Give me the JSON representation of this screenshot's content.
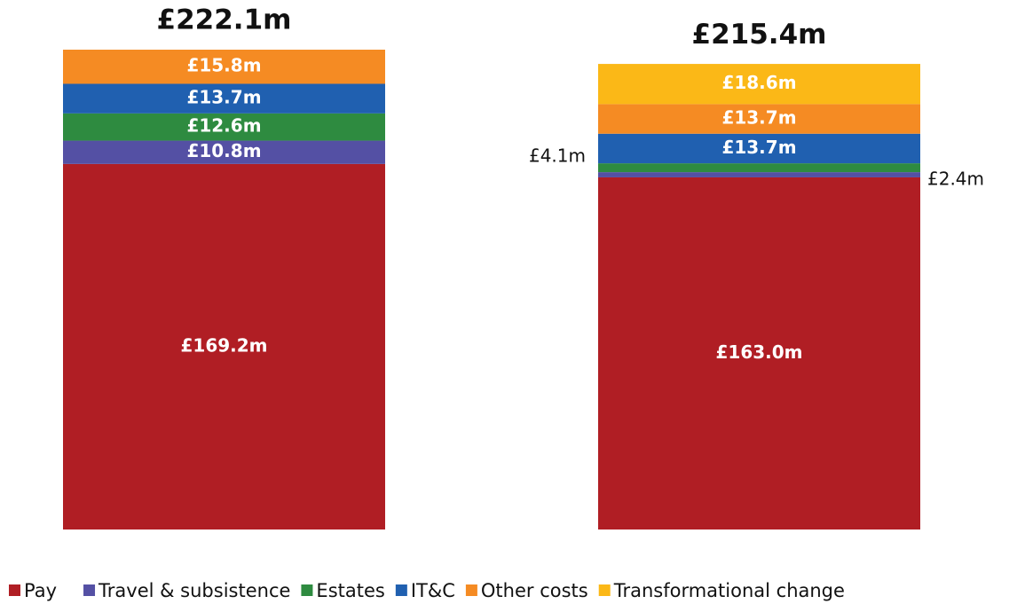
{
  "chart_data": {
    "type": "stacked_bar",
    "categories": [
      null,
      null
    ],
    "ylim": [
      0,
      222.1
    ],
    "totals": {
      "values": [
        222.1,
        215.4
      ],
      "value_labels": [
        "£222.1m",
        "£215.4m"
      ]
    },
    "series": [
      {
        "name": "Pay",
        "color": "#b01e24",
        "values": [
          169.2,
          163.0
        ],
        "value_labels": [
          "£169.2m",
          "£163.0m"
        ]
      },
      {
        "name": "Travel & subsistence",
        "color": "#5450a4",
        "values": [
          10.8,
          2.4
        ],
        "value_labels": [
          "£10.8m",
          "£2.4m"
        ]
      },
      {
        "name": "Estates",
        "color": "#2e8b40",
        "values": [
          12.6,
          4.1
        ],
        "value_labels": [
          "£12.6m",
          "£4.1m"
        ]
      },
      {
        "name": "IT&C",
        "color": "#2060b0",
        "values": [
          13.7,
          13.7
        ],
        "value_labels": [
          "£13.7m",
          "£13.7m"
        ]
      },
      {
        "name": "Other costs",
        "color": "#f58b23",
        "values": [
          15.8,
          13.7
        ],
        "value_labels": [
          "£15.8m",
          "£13.7m"
        ]
      },
      {
        "name": "Transformational change",
        "color": "#fbb817",
        "values": [
          null,
          18.6
        ],
        "value_labels": [
          null,
          "£18.6m"
        ]
      }
    ]
  }
}
